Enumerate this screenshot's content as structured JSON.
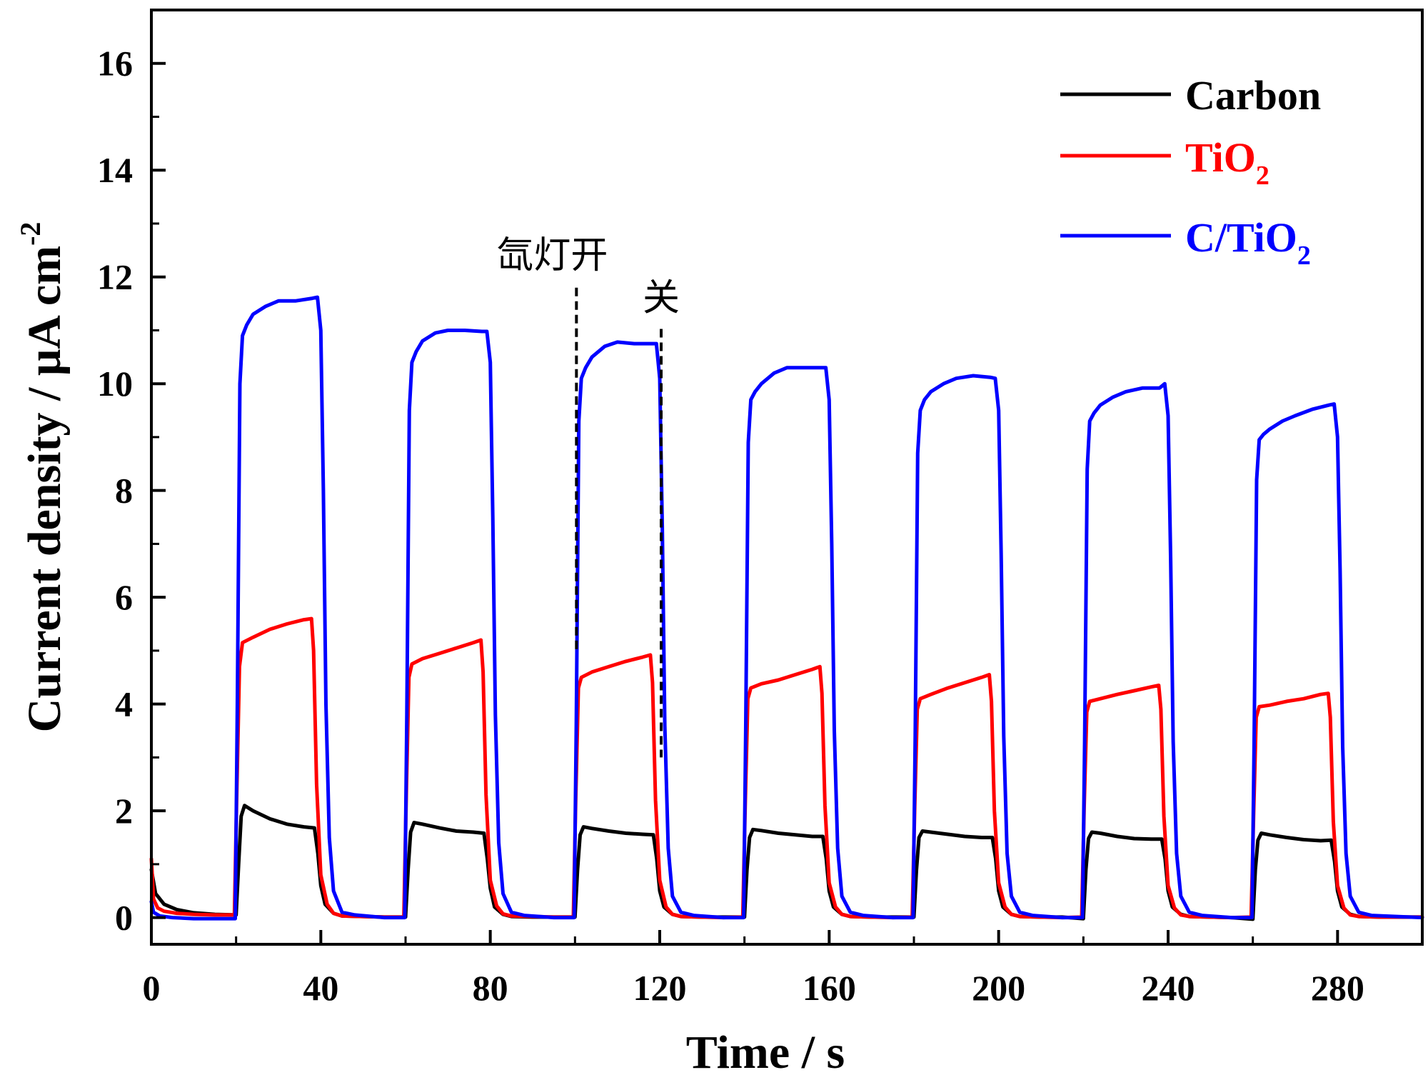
{
  "chart_data": {
    "type": "line",
    "xlabel": "Time / s",
    "ylabel": "Current density / μA cm",
    "ylabel_sup": "-2",
    "xlim": [
      0,
      300
    ],
    "ylim": [
      -0.5,
      17
    ],
    "xticks": [
      0,
      40,
      80,
      120,
      160,
      200,
      240,
      280
    ],
    "yticks": [
      0,
      2,
      4,
      6,
      8,
      10,
      12,
      14,
      16
    ],
    "grid": false,
    "legend_position": "top-right",
    "legend": [
      {
        "key": "carbon",
        "label": "Carbon",
        "sub": "",
        "color": "#000000"
      },
      {
        "key": "tio2",
        "label": "TiO",
        "sub": "2",
        "color": "#ff0000"
      },
      {
        "key": "ctio2",
        "label": "C/TiO",
        "sub": "2",
        "color": "#0000ff"
      }
    ],
    "annotations": [
      {
        "text": "氙灯开",
        "x": 100,
        "y": 12.2
      },
      {
        "text": "关",
        "x": 120,
        "y": 11.4
      }
    ],
    "series": [
      {
        "name": "Carbon",
        "color": "#000000",
        "x": [
          0,
          1,
          3,
          6,
          10,
          15,
          20,
          20.6,
          21.2,
          22,
          24,
          28,
          32,
          36,
          38.5,
          39.3,
          40,
          41,
          43,
          45,
          50,
          55,
          60,
          60.6,
          61.2,
          62,
          64,
          68,
          72,
          76,
          78.5,
          79.3,
          80,
          81,
          83,
          85,
          90,
          95,
          100,
          100.6,
          101.2,
          102,
          104,
          108,
          112,
          116,
          118.5,
          119.3,
          120,
          121,
          123,
          125,
          130,
          135,
          140,
          140.6,
          141.2,
          142,
          144,
          148,
          152,
          156,
          158.5,
          159.3,
          160,
          161,
          163,
          165,
          170,
          175,
          180,
          180.6,
          181.2,
          182,
          184,
          188,
          192,
          196,
          198.5,
          199.3,
          200,
          201,
          203,
          205,
          210,
          215,
          220,
          220.6,
          221.2,
          222,
          224,
          228,
          232,
          236,
          238.5,
          239.3,
          240,
          241,
          243,
          245,
          250,
          255,
          260,
          260.6,
          261.2,
          262,
          264,
          268,
          272,
          276,
          278.5,
          279.3,
          280,
          281,
          283,
          285,
          290,
          300
        ],
        "y": [
          0.9,
          0.45,
          0.25,
          0.15,
          0.09,
          0.06,
          0.05,
          1.0,
          1.9,
          2.1,
          2.0,
          1.85,
          1.75,
          1.7,
          1.68,
          1.2,
          0.6,
          0.25,
          0.08,
          0.03,
          0.02,
          0.01,
          0.01,
          0.9,
          1.6,
          1.78,
          1.75,
          1.68,
          1.62,
          1.6,
          1.58,
          1.1,
          0.55,
          0.2,
          0.06,
          0.02,
          0.01,
          0.01,
          0.01,
          0.9,
          1.55,
          1.7,
          1.67,
          1.62,
          1.58,
          1.56,
          1.55,
          1.1,
          0.5,
          0.2,
          0.06,
          0.02,
          0.01,
          0.01,
          0.01,
          0.9,
          1.5,
          1.65,
          1.63,
          1.58,
          1.55,
          1.52,
          1.52,
          1.1,
          0.5,
          0.2,
          0.06,
          0.02,
          0.01,
          0.01,
          0.01,
          0.9,
          1.5,
          1.62,
          1.6,
          1.56,
          1.52,
          1.5,
          1.5,
          1.1,
          0.5,
          0.2,
          0.06,
          0.02,
          0.01,
          0.01,
          -0.02,
          0.9,
          1.48,
          1.6,
          1.58,
          1.52,
          1.48,
          1.47,
          1.47,
          1.1,
          0.5,
          0.2,
          0.06,
          0.02,
          0.01,
          0.0,
          -0.03,
          0.9,
          1.45,
          1.58,
          1.55,
          1.5,
          1.46,
          1.44,
          1.45,
          1.05,
          0.5,
          0.2,
          0.06,
          0.02,
          0.01,
          0.01
        ]
      },
      {
        "name": "TiO2",
        "color": "#ff0000",
        "x": [
          0,
          0.5,
          1.5,
          3,
          6,
          10,
          15,
          19.6,
          20.2,
          20.8,
          21.5,
          24,
          28,
          32,
          36,
          37.8,
          38.3,
          39,
          40,
          41.5,
          43,
          45,
          50,
          55,
          59.6,
          60.2,
          60.8,
          61.5,
          64,
          68,
          72,
          76,
          77.8,
          78.3,
          79,
          80,
          81.5,
          83,
          85,
          90,
          95,
          99.6,
          100.2,
          100.8,
          101.5,
          104,
          108,
          112,
          116,
          117.8,
          118.3,
          119,
          120,
          121.5,
          123,
          125,
          130,
          135,
          139.6,
          140.2,
          140.8,
          141.5,
          144,
          148,
          152,
          156,
          157.8,
          158.3,
          159,
          160,
          161.5,
          163,
          165,
          170,
          175,
          179.6,
          180.2,
          180.8,
          181.5,
          184,
          188,
          192,
          196,
          197.8,
          198.3,
          199,
          200,
          201.5,
          203,
          205,
          210,
          215,
          219.6,
          220.2,
          220.8,
          221.5,
          224,
          228,
          232,
          236,
          237.8,
          238.3,
          239,
          240,
          241.5,
          243,
          245,
          250,
          255,
          259.6,
          260.2,
          260.8,
          261.5,
          264,
          268,
          272,
          276,
          277.8,
          278.3,
          279,
          280,
          281.5,
          283,
          285,
          290,
          300
        ],
        "y": [
          1.1,
          0.35,
          0.18,
          0.12,
          0.08,
          0.06,
          0.05,
          0.05,
          2.5,
          4.7,
          5.15,
          5.25,
          5.4,
          5.5,
          5.58,
          5.6,
          5.0,
          2.5,
          0.8,
          0.25,
          0.08,
          0.03,
          0.02,
          0.01,
          0.01,
          2.4,
          4.5,
          4.75,
          4.85,
          4.95,
          5.05,
          5.15,
          5.2,
          4.6,
          2.3,
          0.7,
          0.22,
          0.07,
          0.03,
          0.02,
          0.01,
          0.01,
          2.3,
          4.3,
          4.5,
          4.6,
          4.7,
          4.8,
          4.88,
          4.92,
          4.4,
          2.2,
          0.7,
          0.2,
          0.06,
          0.02,
          0.01,
          0.0,
          0.01,
          2.2,
          4.1,
          4.3,
          4.38,
          4.45,
          4.55,
          4.65,
          4.7,
          4.2,
          2.1,
          0.65,
          0.2,
          0.06,
          0.02,
          0.01,
          0.0,
          0.01,
          2.1,
          3.9,
          4.1,
          4.18,
          4.3,
          4.4,
          4.5,
          4.55,
          4.05,
          2.0,
          0.65,
          0.2,
          0.06,
          0.02,
          0.01,
          0.0,
          0.01,
          2.1,
          3.85,
          4.05,
          4.1,
          4.18,
          4.25,
          4.32,
          4.35,
          3.9,
          1.9,
          0.6,
          0.18,
          0.05,
          0.02,
          0.01,
          0.0,
          0.01,
          2.0,
          3.75,
          3.95,
          3.98,
          4.05,
          4.1,
          4.18,
          4.2,
          3.75,
          1.8,
          0.6,
          0.18,
          0.05,
          0.02,
          0.01,
          0.01
        ]
      },
      {
        "name": "C/TiO2",
        "color": "#0000ff",
        "x": [
          0,
          0.5,
          2,
          5,
          10,
          15,
          19.8,
          20.3,
          20.9,
          21.5,
          22.5,
          24,
          27,
          30,
          34,
          38,
          39.2,
          40,
          40.6,
          41.2,
          42,
          43,
          45,
          48,
          55,
          59.8,
          60.3,
          60.9,
          61.5,
          62.5,
          64,
          67,
          70,
          74,
          78,
          79.2,
          80,
          80.6,
          81.2,
          82,
          83,
          85,
          88,
          95,
          99.8,
          100.3,
          100.9,
          101.5,
          102.5,
          104,
          107,
          110,
          114,
          118,
          119.2,
          120,
          120.6,
          121.2,
          122,
          123,
          125,
          128,
          135,
          139.8,
          140.3,
          140.9,
          141.5,
          142.5,
          144,
          147,
          150,
          154,
          158,
          159.2,
          160,
          160.6,
          161.2,
          162,
          163,
          165,
          168,
          175,
          179.8,
          180.3,
          180.9,
          181.5,
          182.5,
          184,
          187,
          190,
          194,
          198,
          199.2,
          200,
          200.6,
          201.2,
          202,
          203,
          205,
          208,
          215,
          219.8,
          220.3,
          220.9,
          221.5,
          222.5,
          224,
          227,
          230,
          234,
          238,
          239.2,
          240,
          240.6,
          241.2,
          242,
          243,
          245,
          248,
          255,
          259.8,
          260.3,
          260.9,
          261.5,
          262.5,
          264,
          267,
          270,
          274,
          278,
          279.2,
          280,
          280.6,
          281.2,
          282,
          283,
          285,
          288,
          300
        ],
        "y": [
          0.3,
          0.1,
          0.03,
          0.0,
          -0.02,
          -0.02,
          -0.02,
          4.0,
          10.0,
          10.9,
          11.1,
          11.3,
          11.45,
          11.55,
          11.55,
          11.6,
          11.62,
          11.0,
          8.0,
          4.0,
          1.5,
          0.5,
          0.1,
          0.05,
          0.0,
          0.0,
          3.8,
          9.5,
          10.4,
          10.6,
          10.8,
          10.95,
          11.0,
          11.0,
          10.98,
          10.98,
          10.4,
          7.5,
          3.8,
          1.4,
          0.45,
          0.1,
          0.04,
          0.0,
          0.0,
          3.6,
          9.3,
          10.1,
          10.3,
          10.5,
          10.7,
          10.78,
          10.75,
          10.75,
          10.75,
          10.1,
          7.3,
          3.6,
          1.3,
          0.4,
          0.1,
          0.04,
          0.0,
          0.0,
          3.5,
          8.9,
          9.7,
          9.85,
          10.0,
          10.2,
          10.3,
          10.3,
          10.3,
          10.3,
          9.7,
          7.0,
          3.5,
          1.3,
          0.4,
          0.1,
          0.04,
          0.0,
          0.0,
          3.4,
          8.7,
          9.5,
          9.7,
          9.85,
          10.0,
          10.1,
          10.15,
          10.12,
          10.1,
          9.5,
          6.8,
          3.4,
          1.2,
          0.4,
          0.1,
          0.04,
          0.0,
          0.0,
          3.3,
          8.4,
          9.3,
          9.45,
          9.6,
          9.75,
          9.85,
          9.92,
          9.92,
          10.0,
          9.4,
          6.7,
          3.3,
          1.2,
          0.4,
          0.1,
          0.04,
          0.0,
          0.0,
          3.2,
          8.2,
          8.95,
          9.05,
          9.15,
          9.3,
          9.4,
          9.52,
          9.6,
          9.62,
          9.0,
          6.5,
          3.2,
          1.2,
          0.4,
          0.1,
          0.04,
          0.0
        ]
      }
    ]
  }
}
